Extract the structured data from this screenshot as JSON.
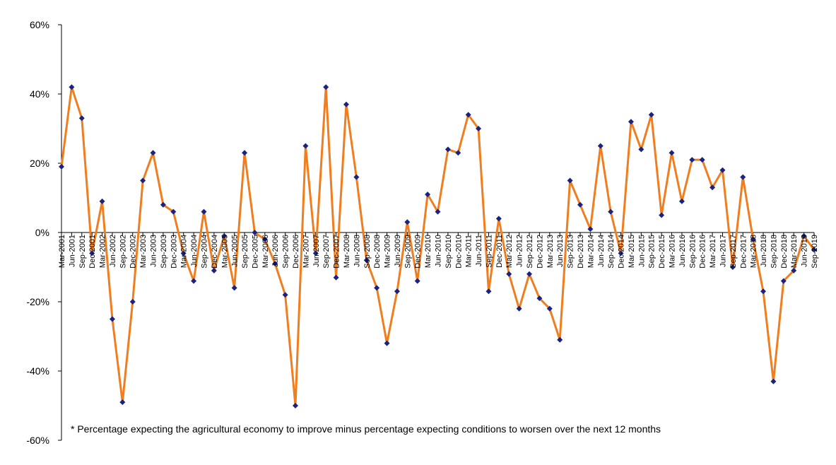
{
  "chart_data": {
    "type": "line",
    "x": [
      "Mar-2001",
      "Jun-2001",
      "Sep-2001",
      "Dec-2001",
      "Mar-2002",
      "Jun-2002",
      "Sep-2002",
      "Dec-2002",
      "Mar-2003",
      "Jun-2003",
      "Sep-2003",
      "Dec-2003",
      "Mar-2004",
      "Jun-2004",
      "Sep-2004",
      "Dec-2004",
      "Mar-2005",
      "Jun-2005",
      "Sep-2005",
      "Dec-2005",
      "Mar-2006",
      "Jun-2006",
      "Sep-2006",
      "Dec-2006",
      "Mar-2007",
      "Jun-2007",
      "Sep-2007",
      "Dec-2007",
      "Mar-2008",
      "Jun-2008",
      "Sep-2008",
      "Dec-2008",
      "Mar-2009",
      "Jun-2009",
      "Sep-2009",
      "Dec-2009",
      "Mar-2010",
      "Jun-2010",
      "Sep-2010",
      "Dec-2010",
      "Mar-2011",
      "Jun-2011",
      "Sep-2011",
      "Dec-2011",
      "Mar-2012",
      "Jun-2012",
      "Sep-2012",
      "Dec-2012",
      "Mar-2013",
      "Jun-2013",
      "Sep-2013",
      "Dec-2013",
      "Mar-2014",
      "Jun-2014",
      "Sep-2014",
      "Dec-2014",
      "Mar-2015",
      "Jun-2015",
      "Sep-2015",
      "Dec-2015",
      "Mar-2016",
      "Jun-2016",
      "Sep-2016",
      "Dec-2016",
      "Mar-2017",
      "Jun-2017",
      "Sep-2017",
      "Dec-2017",
      "Mar-2018",
      "Jun-2018",
      "Sep-2018",
      "Dec-2018",
      "Mar-2019",
      "Jun-2019",
      "Sep-2019"
    ],
    "series": [
      {
        "values": [
          19,
          42,
          33,
          -6,
          9,
          -25,
          -49,
          -20,
          15,
          23,
          8,
          6,
          -6,
          -14,
          6,
          -11,
          -1,
          -16,
          23,
          0,
          -2,
          -9,
          -18,
          -50,
          25,
          -6,
          42,
          -13,
          37,
          16,
          -8,
          -16,
          -32,
          -17,
          3,
          -14,
          11,
          6,
          24,
          23,
          34,
          30,
          -17,
          4,
          -12,
          -22,
          -12,
          -19,
          -22,
          -31,
          15,
          8,
          1,
          25,
          6,
          -6,
          32,
          24,
          34,
          5,
          23,
          9,
          21,
          21,
          13,
          18,
          -10,
          16,
          -2,
          -17,
          -43,
          -14,
          -11,
          -1,
          -5
        ],
        "color": "#F07D1E",
        "marker_color": "#1A237E"
      }
    ],
    "y_ticks": [
      "60%",
      "40%",
      "20%",
      "0%",
      "-20%",
      "-40%",
      "-60%"
    ],
    "ylim": [
      -60,
      60
    ],
    "grid": false,
    "legend": "none",
    "annotation": "* Percentage expecting the agricultural economy to improve minus percentage expecting conditions to worsen over the next 12 months"
  }
}
